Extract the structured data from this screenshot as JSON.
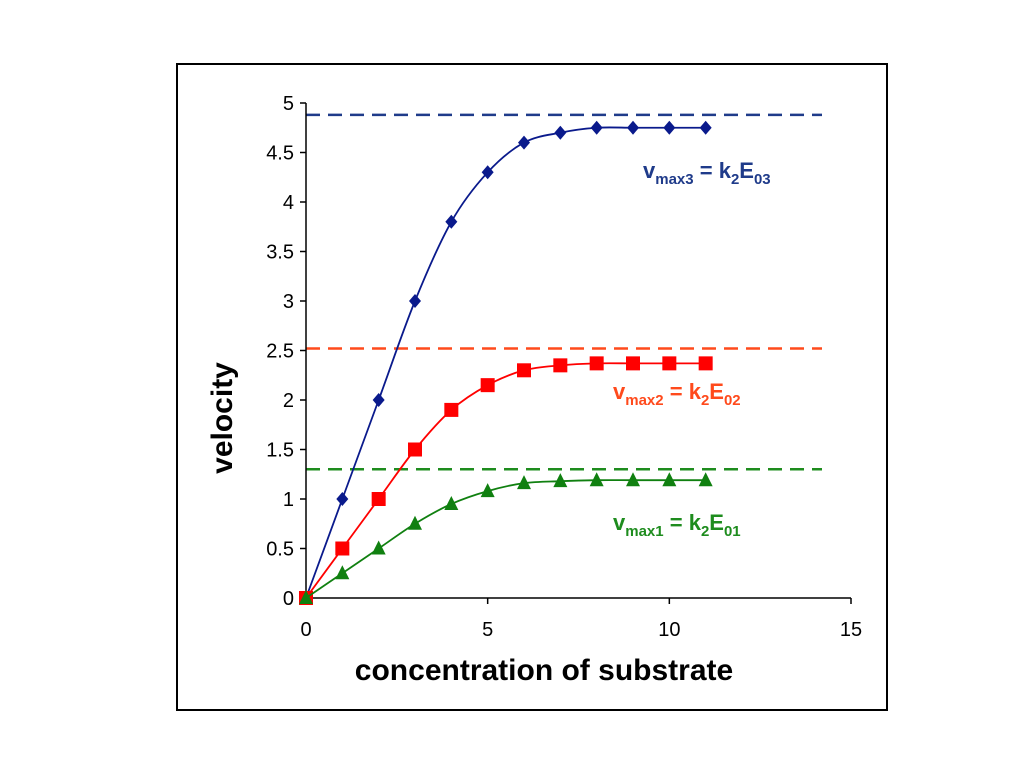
{
  "chart_data": {
    "type": "line",
    "xlabel": "concentration of substrate",
    "ylabel": "velocity",
    "xlim": [
      0,
      15
    ],
    "ylim": [
      0,
      5
    ],
    "x_ticks": [
      0,
      5,
      10,
      15
    ],
    "y_ticks": [
      0,
      0.5,
      1,
      1.5,
      2,
      2.5,
      3,
      3.5,
      4,
      4.5,
      5
    ],
    "grid": false,
    "series": [
      {
        "key": "E03",
        "color": "#0a1a8c",
        "marker": "diamond",
        "x": [
          0,
          1,
          2,
          3,
          4,
          5,
          6,
          7,
          8,
          9,
          10,
          11
        ],
        "values": [
          0,
          1.0,
          2.0,
          3.0,
          3.8,
          4.3,
          4.6,
          4.7,
          4.75,
          4.75,
          4.75,
          4.75
        ]
      },
      {
        "key": "E02",
        "color": "#ff0000",
        "marker": "square",
        "x": [
          0,
          1,
          2,
          3,
          4,
          5,
          6,
          7,
          8,
          9,
          10,
          11
        ],
        "values": [
          0,
          0.5,
          1.0,
          1.5,
          1.9,
          2.15,
          2.3,
          2.35,
          2.37,
          2.37,
          2.37,
          2.37
        ]
      },
      {
        "key": "E01",
        "color": "#108010",
        "marker": "triangle",
        "x": [
          0,
          1,
          2,
          3,
          4,
          5,
          6,
          7,
          8,
          9,
          10,
          11
        ],
        "values": [
          0,
          0.25,
          0.5,
          0.75,
          0.95,
          1.08,
          1.16,
          1.18,
          1.19,
          1.19,
          1.19,
          1.19
        ]
      }
    ],
    "reference_lines": [
      {
        "y": 4.88,
        "color": "#1f3b8a"
      },
      {
        "y": 2.52,
        "color": "#ff4a1c"
      },
      {
        "y": 1.3,
        "color": "#1e8c1e"
      }
    ],
    "annotations": [
      {
        "color": "#1f3b8a",
        "v": "v",
        "v_sub": "max3",
        "eq": " = k",
        "k_sub": "2",
        "e": "E",
        "e_sub": "03"
      },
      {
        "color": "#ff4a1c",
        "v": "v",
        "v_sub": "max2",
        "eq": " = k",
        "k_sub": "2",
        "e": "E",
        "e_sub": "02"
      },
      {
        "color": "#1e8c1e",
        "v": "v",
        "v_sub": "max1",
        "eq": " = k",
        "k_sub": "2",
        "e": "E",
        "e_sub": "01"
      }
    ]
  }
}
